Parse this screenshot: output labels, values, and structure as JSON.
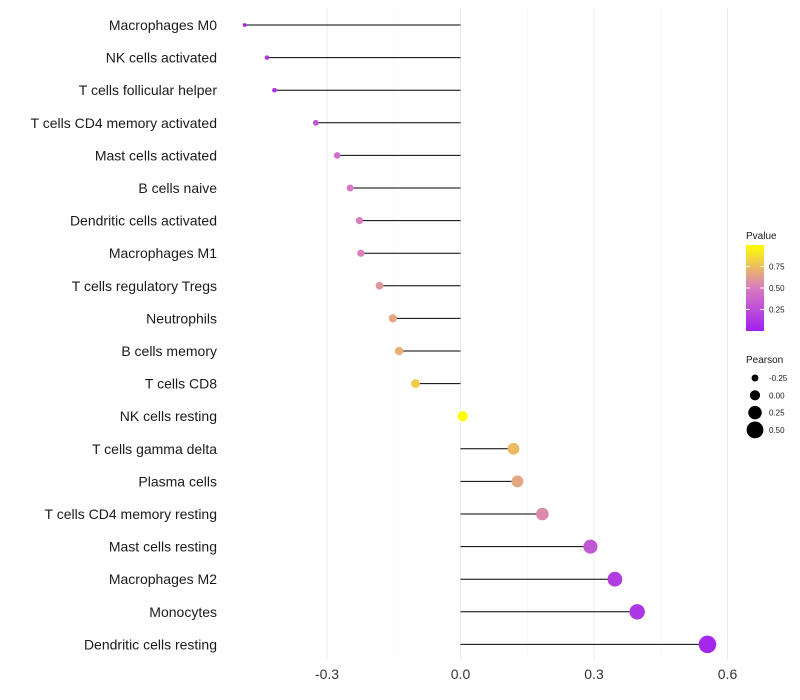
{
  "chart_data": {
    "type": "lollipop",
    "categories": [
      "Macrophages M0",
      "NK cells activated",
      "T cells follicular helper",
      "T cells CD4 memory activated",
      "Mast cells activated",
      "B cells naive",
      "Dendritic cells activated",
      "Macrophages M1",
      "T cells regulatory  Tregs ",
      "Neutrophils",
      "B cells memory",
      "T cells CD8",
      "NK cells resting",
      "T cells gamma delta",
      "Plasma cells",
      "T cells CD4 memory resting",
      "Mast cells resting",
      "Macrophages M2",
      "Monocytes",
      "Dendritic cells resting"
    ],
    "values": [
      -0.485,
      -0.435,
      -0.418,
      -0.325,
      -0.277,
      -0.248,
      -0.227,
      -0.224,
      -0.182,
      -0.152,
      -0.138,
      -0.101,
      0.005,
      0.119,
      0.128,
      0.184,
      0.292,
      0.347,
      0.397,
      0.555
    ],
    "pvalues": [
      0.03,
      0.08,
      0.1,
      0.3,
      0.42,
      0.48,
      0.5,
      0.52,
      0.6,
      0.66,
      0.7,
      0.8,
      1.0,
      0.74,
      0.66,
      0.55,
      0.3,
      0.15,
      0.12,
      0.04
    ],
    "x_ticks": [
      {
        "value": -0.3,
        "label": "-0.3"
      },
      {
        "value": 0.0,
        "label": "0.0"
      },
      {
        "value": 0.3,
        "label": "0.3"
      },
      {
        "value": 0.6,
        "label": "0.6"
      }
    ],
    "xlim": [
      -0.5,
      0.6
    ],
    "legend": {
      "color": {
        "title": "Pvalue",
        "ticks": [
          {
            "value": 0.25,
            "label": "0.25"
          },
          {
            "value": 0.5,
            "label": "0.50"
          },
          {
            "value": 0.75,
            "label": "0.75"
          }
        ],
        "low_color": "#a020f0",
        "mid_color": "#d87cc0",
        "high_color": "#ffff00"
      },
      "size": {
        "title": "Pearson",
        "entries": [
          {
            "value": -0.25,
            "label": "-0.25"
          },
          {
            "value": 0.0,
            "label": "0.00"
          },
          {
            "value": 0.25,
            "label": "0.25"
          },
          {
            "value": 0.5,
            "label": "0.50"
          }
        ]
      }
    },
    "colors": {
      "stem": "#000000",
      "grid": "#ebebeb",
      "legend_dot": "#000000"
    }
  }
}
